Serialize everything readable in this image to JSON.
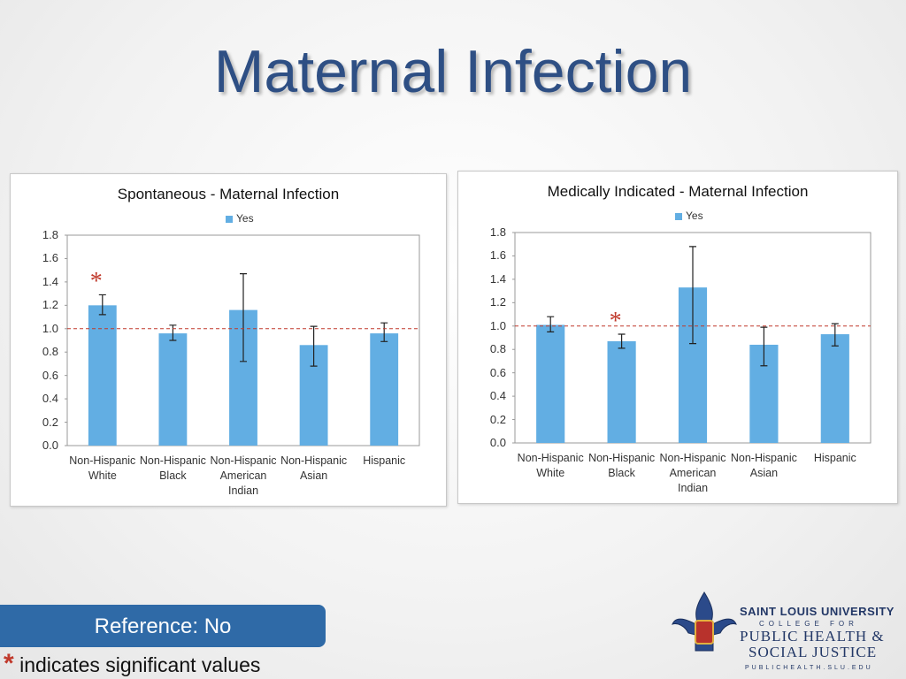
{
  "title": "Maternal Infection",
  "chart_data": [
    {
      "type": "bar",
      "title": "Spontaneous - Maternal Infection",
      "categories": [
        "Non-Hispanic White",
        "Non-Hispanic Black",
        "Non-Hispanic American Indian",
        "Non-Hispanic Asian",
        "Hispanic"
      ],
      "series": [
        {
          "name": "Yes",
          "color": "#62aee3",
          "values": [
            1.2,
            0.96,
            1.16,
            0.86,
            0.96
          ],
          "ci_low": [
            1.12,
            0.9,
            0.72,
            0.68,
            0.89
          ],
          "ci_high": [
            1.29,
            1.03,
            1.47,
            1.02,
            1.05
          ]
        }
      ],
      "ylim": [
        0,
        1.8
      ],
      "yticks": [
        {
          "value": 0,
          "label": "0.0"
        },
        0.2,
        0.4,
        0.6,
        0.8,
        {
          "value": 1,
          "label": "1.0"
        },
        1.2,
        1.4,
        1.6,
        1.8
      ],
      "reference_line": 1,
      "reference_color": "#c0392b",
      "annotations": [
        {
          "text": "*",
          "category": "Non-Hispanic White"
        }
      ],
      "legend": "top"
    },
    {
      "type": "bar",
      "title": "Medically Indicated - Maternal Infection",
      "categories": [
        "Non-Hispanic White",
        "Non-Hispanic Black",
        "Non-Hispanic American Indian",
        "Non-Hispanic Asian",
        "Hispanic"
      ],
      "series": [
        {
          "name": "Yes",
          "color": "#62aee3",
          "values": [
            1.01,
            0.87,
            1.33,
            0.84,
            0.93
          ],
          "ci_low": [
            0.95,
            0.81,
            0.85,
            0.66,
            0.83
          ],
          "ci_high": [
            1.08,
            0.93,
            1.68,
            0.99,
            1.02
          ]
        }
      ],
      "ylim": [
        0,
        1.8
      ],
      "yticks": [
        {
          "value": 0,
          "label": "0.0"
        },
        0.2,
        0.4,
        0.6,
        0.8,
        {
          "value": 1,
          "label": "1.0"
        },
        1.2,
        1.4,
        1.6,
        1.8
      ],
      "reference_line": 1,
      "reference_color": "#c0392b",
      "annotations": [
        {
          "text": "*",
          "category": "Non-Hispanic Black"
        }
      ],
      "legend": "top"
    }
  ],
  "reference": "Reference: No",
  "footnote": {
    "mark": "*",
    "text": "indicates significant values"
  },
  "logo": {
    "name": "SAINT LOUIS UNIVERSITY",
    "line1": "COLLEGE FOR",
    "line2": "PUBLIC HEALTH &",
    "line3": "SOCIAL JUSTICE",
    "url": "PUBLICHEALTH.SLU.EDU"
  }
}
